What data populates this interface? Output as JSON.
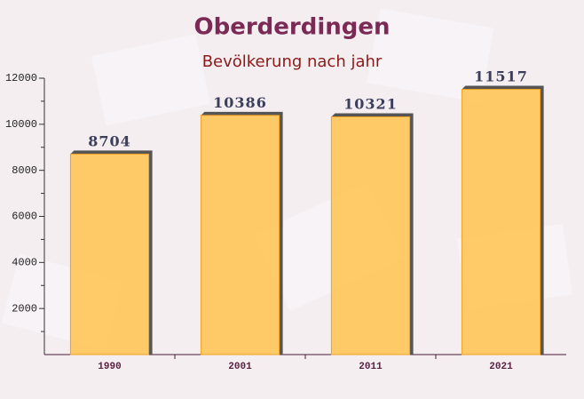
{
  "chart_data": {
    "type": "bar",
    "title": "Oberderdingen",
    "subtitle": "Bevölkerung nach jahr",
    "categories": [
      "1990",
      "2001",
      "2011",
      "2021"
    ],
    "values": [
      8704,
      10386,
      10321,
      11517
    ],
    "color": "#ffc34f",
    "ylim": [
      0,
      12000
    ],
    "yticks": [
      2000,
      4000,
      6000,
      8000,
      10000,
      12000
    ]
  }
}
